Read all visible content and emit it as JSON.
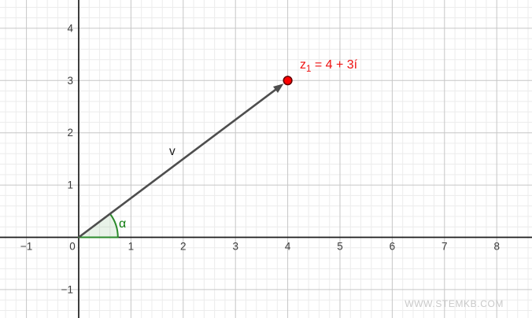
{
  "watermark": "WWW.STEMKB.COM",
  "chart_data": {
    "type": "scatter",
    "title": "",
    "xlabel": "",
    "ylabel": "",
    "grid": true,
    "minor_divisions_per_unit": 5,
    "x_range": [
      -1.51,
      8.67
    ],
    "y_range": [
      -1.54,
      4.54
    ],
    "x_ticks": [
      -1,
      0,
      1,
      2,
      3,
      4,
      5,
      6,
      7,
      8
    ],
    "y_ticks": [
      -1,
      1,
      2,
      3,
      4
    ],
    "points": [
      {
        "x": 4,
        "y": 3,
        "label_base": "z",
        "label_sub": "1",
        "label_rest": " = 4 + 3í",
        "fill": "#ff0000",
        "stroke": "#660000"
      }
    ],
    "vector": {
      "from": [
        0,
        0
      ],
      "to": [
        4,
        3
      ],
      "label": "v",
      "color": "#4e4e4e"
    },
    "angle": {
      "vertex": [
        0,
        0
      ],
      "from_deg": 0,
      "to_deg": 36.87,
      "radius_units": 0.75,
      "label": "α",
      "stroke": "#2b8a2b",
      "fill": "rgba(43,138,43,0.10)",
      "text_color": "#0b7a0b"
    },
    "colors": {
      "axis": "#1c1c1c",
      "major_grid": "#c6c6c6",
      "minor_grid": "#ececec",
      "tick_label": "#3c3c3c",
      "point_label": "#ee1111",
      "vector_label": "#1c1c1c"
    }
  }
}
